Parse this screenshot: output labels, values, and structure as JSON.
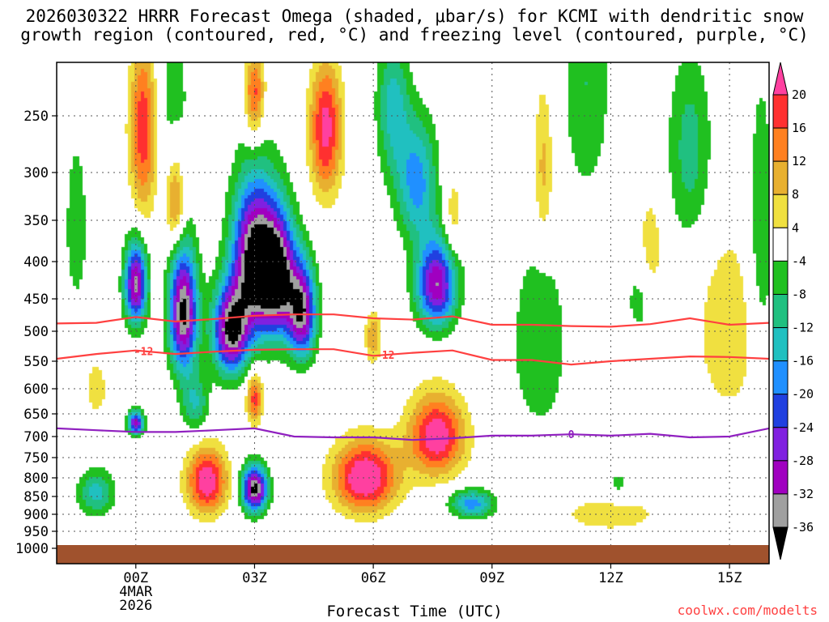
{
  "title_line1": "2026030322 HRRR Forecast Omega (shaded, μbar/s) for KCMI with dendritic snow",
  "title_line2": "growth region (contoured, red, °C) and freezing level (contoured, purple, °C)",
  "credit": "coolwx.com/modelts",
  "chart_data": {
    "type": "heatmap",
    "xlabel": "Forecast Time (UTC)",
    "ylabel": "",
    "x_range_hours": [
      -2,
      16
    ],
    "x_ticks": [
      {
        "hour": 0,
        "label": "00Z",
        "sub": [
          "4MAR",
          "2026"
        ]
      },
      {
        "hour": 3,
        "label": "03Z",
        "sub": []
      },
      {
        "hour": 6,
        "label": "06Z",
        "sub": []
      },
      {
        "hour": 9,
        "label": "09Z",
        "sub": []
      },
      {
        "hour": 12,
        "label": "12Z",
        "sub": []
      },
      {
        "hour": 15,
        "label": "15Z",
        "sub": []
      }
    ],
    "y_range_mb": [
      200,
      1000
    ],
    "y_ticks": [
      250,
      300,
      350,
      400,
      450,
      500,
      550,
      600,
      650,
      700,
      750,
      800,
      850,
      900,
      950,
      1000
    ],
    "colorbar": {
      "levels": [
        20,
        16,
        12,
        8,
        4,
        -4,
        -8,
        -12,
        -16,
        -20,
        -24,
        -28,
        -32,
        -36
      ],
      "colors": [
        "#ff40a0",
        "#ff3030",
        "#ff8020",
        "#e8b030",
        "#f0e040",
        "#ffffff",
        "#20c020",
        "#20c080",
        "#20c0c0",
        "#2090ff",
        "#2040e0",
        "#8020e0",
        "#a000c0",
        "#a0a0a0",
        "#000000"
      ]
    },
    "contours": [
      {
        "name": "",
        "color": "#ff4040",
        "label": "",
        "x": [
          -2,
          -1,
          0,
          1,
          2,
          3,
          4,
          5,
          6,
          7,
          8,
          9,
          10,
          11,
          12,
          13,
          14,
          15,
          16
        ],
        "y": [
          488,
          487,
          478,
          485,
          481,
          476,
          474,
          474,
          480,
          482,
          477,
          490,
          490,
          492,
          493,
          489,
          480,
          490,
          487
        ]
      },
      {
        "name": "",
        "color": "#ff4040",
        "label": "-12",
        "x": [
          -2,
          -1,
          0,
          1,
          2,
          3,
          4,
          5,
          6,
          7,
          8,
          9,
          10,
          11,
          12,
          13,
          14,
          15,
          16
        ],
        "y": [
          546,
          538,
          532,
          538,
          534,
          531,
          530,
          530,
          541,
          536,
          532,
          548,
          548,
          556,
          550,
          546,
          542,
          543,
          546
        ]
      },
      {
        "name": "",
        "color": "#9020c0",
        "label": "0",
        "x": [
          -2,
          -1,
          0,
          1,
          2,
          3,
          4,
          5,
          6,
          7,
          8,
          9,
          10,
          11,
          12,
          13,
          14,
          15,
          16
        ],
        "y": [
          682,
          686,
          690,
          690,
          686,
          682,
          700,
          702,
          702,
          708,
          704,
          698,
          698,
          695,
          698,
          694,
          702,
          700,
          682
        ]
      }
    ],
    "omega_field": [
      {
        "x": 1.2,
        "p": 470,
        "w": 0.35,
        "h": 90,
        "v": -38
      },
      {
        "x": 3.0,
        "p": 400,
        "w": 0.55,
        "h": 95,
        "v": -40
      },
      {
        "x": 2.4,
        "p": 500,
        "w": 0.45,
        "h": 70,
        "v": -36
      },
      {
        "x": 3.6,
        "p": 420,
        "w": 0.45,
        "h": 80,
        "v": -36
      },
      {
        "x": 4.2,
        "p": 470,
        "w": 0.35,
        "h": 70,
        "v": -34
      },
      {
        "x": 0.0,
        "p": 430,
        "w": 0.28,
        "h": 55,
        "v": -34
      },
      {
        "x": 0.0,
        "p": 670,
        "w": 0.2,
        "h": 25,
        "v": -30
      },
      {
        "x": 3.0,
        "p": 830,
        "w": 0.32,
        "h": 60,
        "v": -38
      },
      {
        "x": 7.6,
        "p": 430,
        "w": 0.5,
        "h": 60,
        "v": -32
      },
      {
        "x": 7.1,
        "p": 310,
        "w": 0.5,
        "h": 60,
        "v": -18
      },
      {
        "x": 8.5,
        "p": 870,
        "w": 0.55,
        "h": 40,
        "v": -18
      },
      {
        "x": 6.5,
        "p": 240,
        "w": 0.4,
        "h": 60,
        "v": -14
      },
      {
        "x": 1.5,
        "p": 630,
        "w": 0.35,
        "h": 60,
        "v": -12
      },
      {
        "x": -1.0,
        "p": 840,
        "w": 0.45,
        "h": 60,
        "v": -14
      },
      {
        "x": -1.5,
        "p": 360,
        "w": 0.35,
        "h": 120,
        "v": -6
      },
      {
        "x": 0.9,
        "p": 240,
        "w": 0.55,
        "h": 90,
        "v": -6
      },
      {
        "x": 10.2,
        "p": 520,
        "w": 0.7,
        "h": 160,
        "v": -8
      },
      {
        "x": 11.4,
        "p": 220,
        "w": 0.6,
        "h": 100,
        "v": -8
      },
      {
        "x": 12.8,
        "p": 450,
        "w": 0.4,
        "h": 60,
        "v": -8
      },
      {
        "x": 12.2,
        "p": 820,
        "w": 0.3,
        "h": 40,
        "v": -6
      },
      {
        "x": 14.0,
        "p": 280,
        "w": 0.55,
        "h": 90,
        "v": -10
      },
      {
        "x": 15.8,
        "p": 380,
        "w": 0.35,
        "h": 180,
        "v": -8
      },
      {
        "x": 1.8,
        "p": 810,
        "w": 0.5,
        "h": 85,
        "v": 24
      },
      {
        "x": 5.8,
        "p": 800,
        "w": 0.8,
        "h": 90,
        "v": 26
      },
      {
        "x": 7.6,
        "p": 700,
        "w": 0.7,
        "h": 90,
        "v": 24
      },
      {
        "x": 0.2,
        "p": 260,
        "w": 0.35,
        "h": 80,
        "v": 20
      },
      {
        "x": 1.0,
        "p": 330,
        "w": 0.25,
        "h": 50,
        "v": 16
      },
      {
        "x": 3.0,
        "p": 230,
        "w": 0.25,
        "h": 40,
        "v": 18
      },
      {
        "x": 4.8,
        "p": 260,
        "w": 0.4,
        "h": 60,
        "v": 22
      },
      {
        "x": 3.0,
        "p": 620,
        "w": 0.2,
        "h": 50,
        "v": 18
      },
      {
        "x": 6.0,
        "p": 510,
        "w": 0.2,
        "h": 40,
        "v": 12
      },
      {
        "x": 8.0,
        "p": 350,
        "w": 0.25,
        "h": 50,
        "v": 8
      },
      {
        "x": 10.3,
        "p": 300,
        "w": 0.25,
        "h": 80,
        "v": 10
      },
      {
        "x": 13.0,
        "p": 400,
        "w": 0.35,
        "h": 80,
        "v": 8
      },
      {
        "x": 15.0,
        "p": 500,
        "w": 0.8,
        "h": 140,
        "v": 8
      },
      {
        "x": 12.0,
        "p": 900,
        "w": 1.5,
        "h": 60,
        "v": 6
      },
      {
        "x": -1.0,
        "p": 600,
        "w": 0.25,
        "h": 50,
        "v": 8
      }
    ]
  }
}
